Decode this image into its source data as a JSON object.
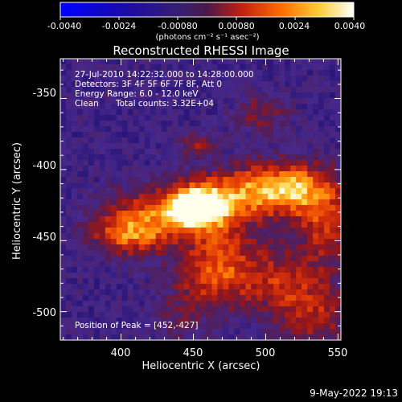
{
  "colorbar": {
    "ticks": [
      "-0.0040",
      "-0.0024",
      "-0.00080",
      "0.00080",
      "0.0024",
      "0.0040"
    ],
    "unit_label": "(photons cm⁻² s⁻¹ asec⁻²)",
    "range": [
      -0.004,
      0.004
    ]
  },
  "title": "Reconstructed RHESSI Image",
  "info": {
    "time_range": "27-Jul-2010 14:22:32.000 to 14:28:00.000",
    "detectors": "Detectors: 3F 4F 5F 6F 7F 8F, Att 0",
    "energy_range": "Energy Range: 6.0 - 12.0 keV",
    "clean": "Clean",
    "total_counts": "Total counts: 3.32E+04",
    "peak": "Position of Peak = [452,-427]"
  },
  "axes": {
    "xlabel": "Heliocentric X (arcsec)",
    "ylabel": "Heliocentric Y (arcsec)",
    "xticks": [
      "400",
      "450",
      "500",
      "550"
    ],
    "yticks": [
      "-350",
      "-400",
      "-450",
      "-500"
    ],
    "xlim": [
      358,
      552
    ],
    "ylim": [
      -520,
      -322
    ]
  },
  "timestamp": "9-May-2022 19:13",
  "colors": {
    "background": "#000000",
    "low": "#0000ff",
    "mid": "#3a1f6e",
    "high": "#ffffff",
    "image_base": "#47288a"
  },
  "image": {
    "grid_cols": 50,
    "grid_rows": 50,
    "peak_position": [
      452,
      -427
    ]
  }
}
